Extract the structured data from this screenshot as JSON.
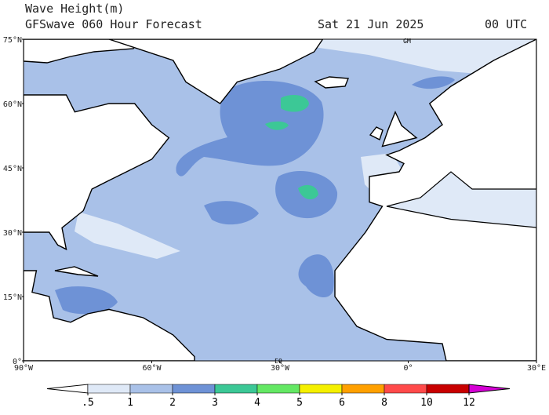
{
  "header": {
    "title": "Wave Height(m)",
    "subtitle": "GFSwave 060 Hour Forecast",
    "date": "Sat 21 Jun 2025",
    "time": "00 UTC"
  },
  "map": {
    "lat_labels": [
      "75°N",
      "60°N",
      "45°N",
      "30°N",
      "15°N",
      "0°"
    ],
    "lon_labels": [
      "90°W",
      "60°W",
      "30°W",
      "0°",
      "30°E"
    ],
    "annotations": [
      "GM",
      "EQ"
    ]
  },
  "colorbar": {
    "ticks": [
      {
        "value": 0.5,
        "label": ".5"
      },
      1,
      2,
      3,
      4,
      5,
      6,
      8,
      10,
      12
    ],
    "colors": [
      "#ffffff",
      "#dfe9f7",
      "#a9c1e8",
      "#6e92d6",
      "#3cc896",
      "#64e864",
      "#f5f000",
      "#ffa000",
      "#ff4a4a",
      "#c80000",
      "#d400d4"
    ]
  }
}
